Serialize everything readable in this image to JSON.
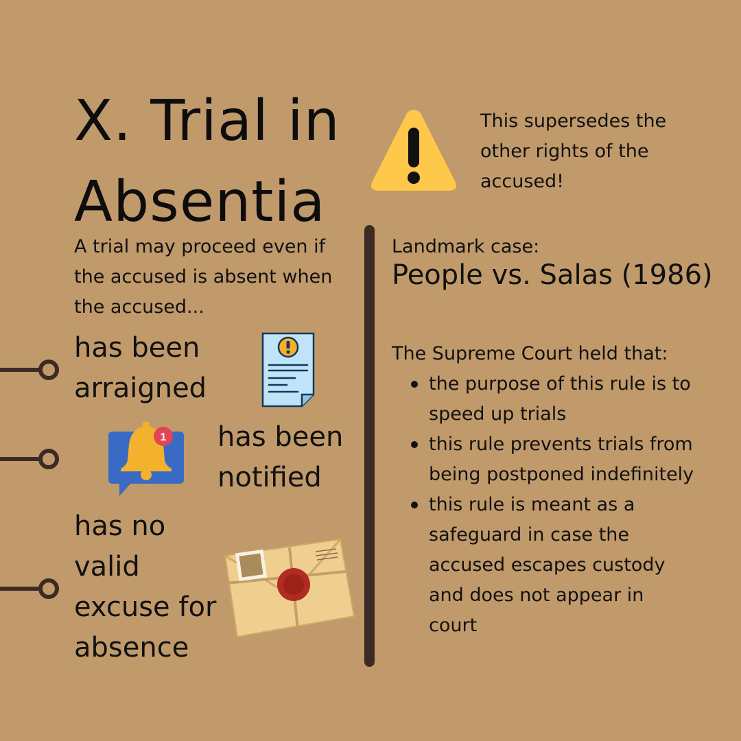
{
  "title": {
    "line1": "X. Trial in",
    "line2": "Absentia"
  },
  "warning": {
    "icon": "warning-triangle-icon",
    "text": "This supersedes the other rights of the accused!",
    "color": "#fec84a"
  },
  "intro": "A trial may proceed even if the accused is absent when the accused...",
  "conditions": [
    {
      "text": "has been arraigned",
      "icon": "document-alert-icon"
    },
    {
      "text": "has been notified",
      "icon": "notification-bell-icon",
      "badge": "1"
    },
    {
      "text": "has no valid excuse for absence",
      "icon": "sealed-envelope-icon"
    }
  ],
  "landmark": {
    "label": "Landmark case:",
    "case_name": "People vs. Salas (1986)",
    "held": "The Supreme Court held that:",
    "points": [
      "the purpose of this rule is to speed up trials",
      "this rule prevents trials from being postponed indefinitely",
      "this rule is meant as a safeguard in case the accused escapes custody and does not appear in court"
    ]
  },
  "colors": {
    "background": "#c19a6b",
    "divider": "#3e2a24",
    "connector": "#3e2a24"
  }
}
